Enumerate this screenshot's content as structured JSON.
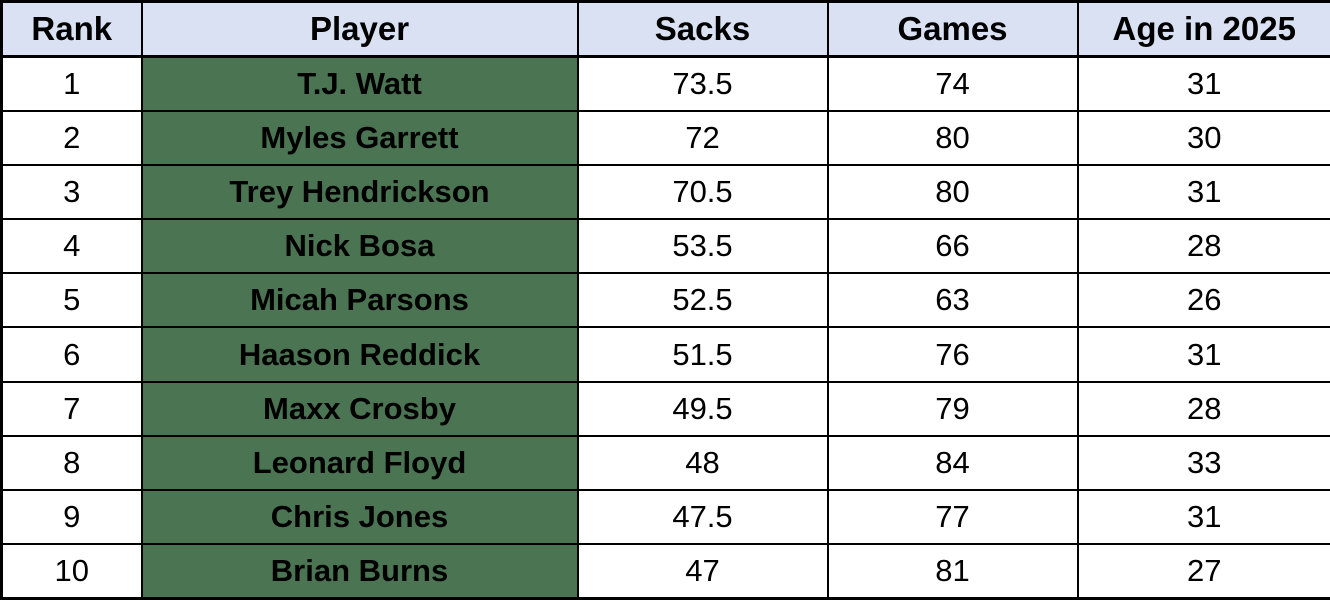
{
  "colors": {
    "header_bg": "#D9E1F2",
    "player_cell_bg": "#4A7452",
    "row_bg": "#FFFFFF",
    "border": "#000000",
    "text": "#000000"
  },
  "table": {
    "headers": [
      "Rank",
      "Player",
      "Sacks",
      "Games",
      "Age in 2025"
    ],
    "rows": [
      {
        "rank": "1",
        "player": "T.J. Watt",
        "sacks": "73.5",
        "games": "74",
        "age": "31"
      },
      {
        "rank": "2",
        "player": "Myles Garrett",
        "sacks": "72",
        "games": "80",
        "age": "30"
      },
      {
        "rank": "3",
        "player": "Trey Hendrickson",
        "sacks": "70.5",
        "games": "80",
        "age": "31"
      },
      {
        "rank": "4",
        "player": "Nick Bosa",
        "sacks": "53.5",
        "games": "66",
        "age": "28"
      },
      {
        "rank": "5",
        "player": "Micah Parsons",
        "sacks": "52.5",
        "games": "63",
        "age": "26"
      },
      {
        "rank": "6",
        "player": "Haason Reddick",
        "sacks": "51.5",
        "games": "76",
        "age": "31"
      },
      {
        "rank": "7",
        "player": "Maxx Crosby",
        "sacks": "49.5",
        "games": "79",
        "age": "28"
      },
      {
        "rank": "8",
        "player": "Leonard Floyd",
        "sacks": "48",
        "games": "84",
        "age": "33"
      },
      {
        "rank": "9",
        "player": "Chris Jones",
        "sacks": "47.5",
        "games": "77",
        "age": "31"
      },
      {
        "rank": "10",
        "player": "Brian Burns",
        "sacks": "47",
        "games": "81",
        "age": "27"
      }
    ]
  },
  "chart_data": {
    "type": "table",
    "title": "",
    "columns": [
      "Rank",
      "Player",
      "Sacks",
      "Games",
      "Age in 2025"
    ],
    "rows": [
      [
        1,
        "T.J. Watt",
        73.5,
        74,
        31
      ],
      [
        2,
        "Myles Garrett",
        72,
        80,
        30
      ],
      [
        3,
        "Trey Hendrickson",
        70.5,
        80,
        31
      ],
      [
        4,
        "Nick Bosa",
        53.5,
        66,
        28
      ],
      [
        5,
        "Micah Parsons",
        52.5,
        63,
        26
      ],
      [
        6,
        "Haason Reddick",
        51.5,
        76,
        31
      ],
      [
        7,
        "Maxx Crosby",
        49.5,
        79,
        28
      ],
      [
        8,
        "Leonard Floyd",
        48,
        84,
        33
      ],
      [
        9,
        "Chris Jones",
        47.5,
        77,
        31
      ],
      [
        10,
        "Brian Burns",
        47,
        81,
        27
      ]
    ]
  }
}
